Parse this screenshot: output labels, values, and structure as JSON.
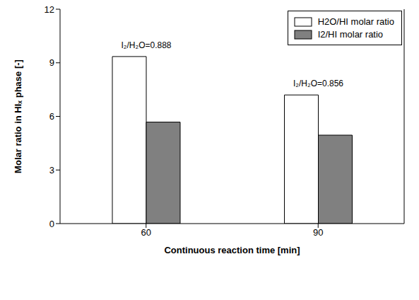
{
  "chart_data": {
    "type": "bar",
    "x_label": "Continuous reaction time [min]",
    "y_label": "Molar ratio in HIₓ phase [-]",
    "categories": [
      60,
      90
    ],
    "series": [
      {
        "name": "H2O/HI molar ratio",
        "color": "#ffffff",
        "values": [
          9.35,
          7.2
        ]
      },
      {
        "name": "I2/HI molar ratio",
        "color": "#808080",
        "values": [
          5.68,
          4.95
        ]
      }
    ],
    "annotations": [
      "I₂/H₂O=0.888",
      "I₂/H₂O=0.856"
    ],
    "ylim": [
      0,
      12
    ],
    "yticks": [
      0,
      3,
      6,
      9,
      12
    ],
    "grid": false,
    "legend": "upper right"
  }
}
